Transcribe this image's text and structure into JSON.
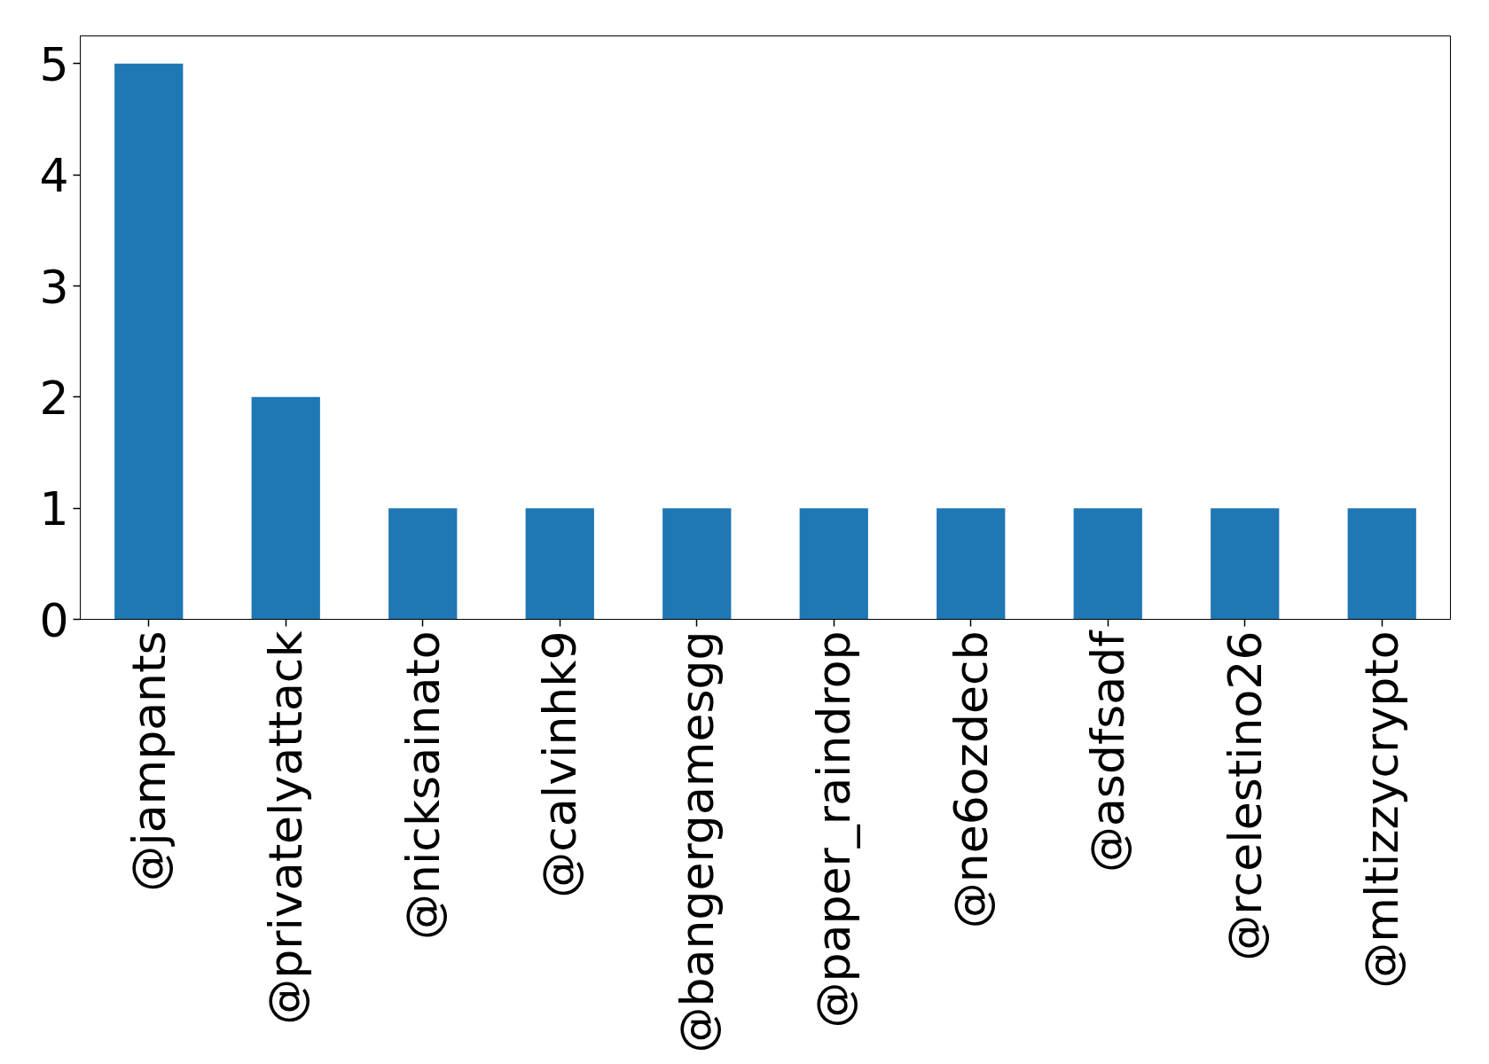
{
  "chart_data": {
    "type": "bar",
    "categories": [
      "@jampants",
      "@privatelyattack",
      "@nicksainato",
      "@calvinhk9",
      "@bangergamesgg",
      "@paper_raindrop",
      "@ne6ozdecb",
      "@asdfsadf",
      "@rcelestino26",
      "@mltizzycrypto"
    ],
    "values": [
      5,
      2,
      1,
      1,
      1,
      1,
      1,
      1,
      1,
      1
    ],
    "color": "#1f77b4",
    "ylim": [
      0,
      5.25
    ],
    "yticks": [
      0,
      1,
      2,
      3,
      4,
      5
    ],
    "grid": false
  }
}
